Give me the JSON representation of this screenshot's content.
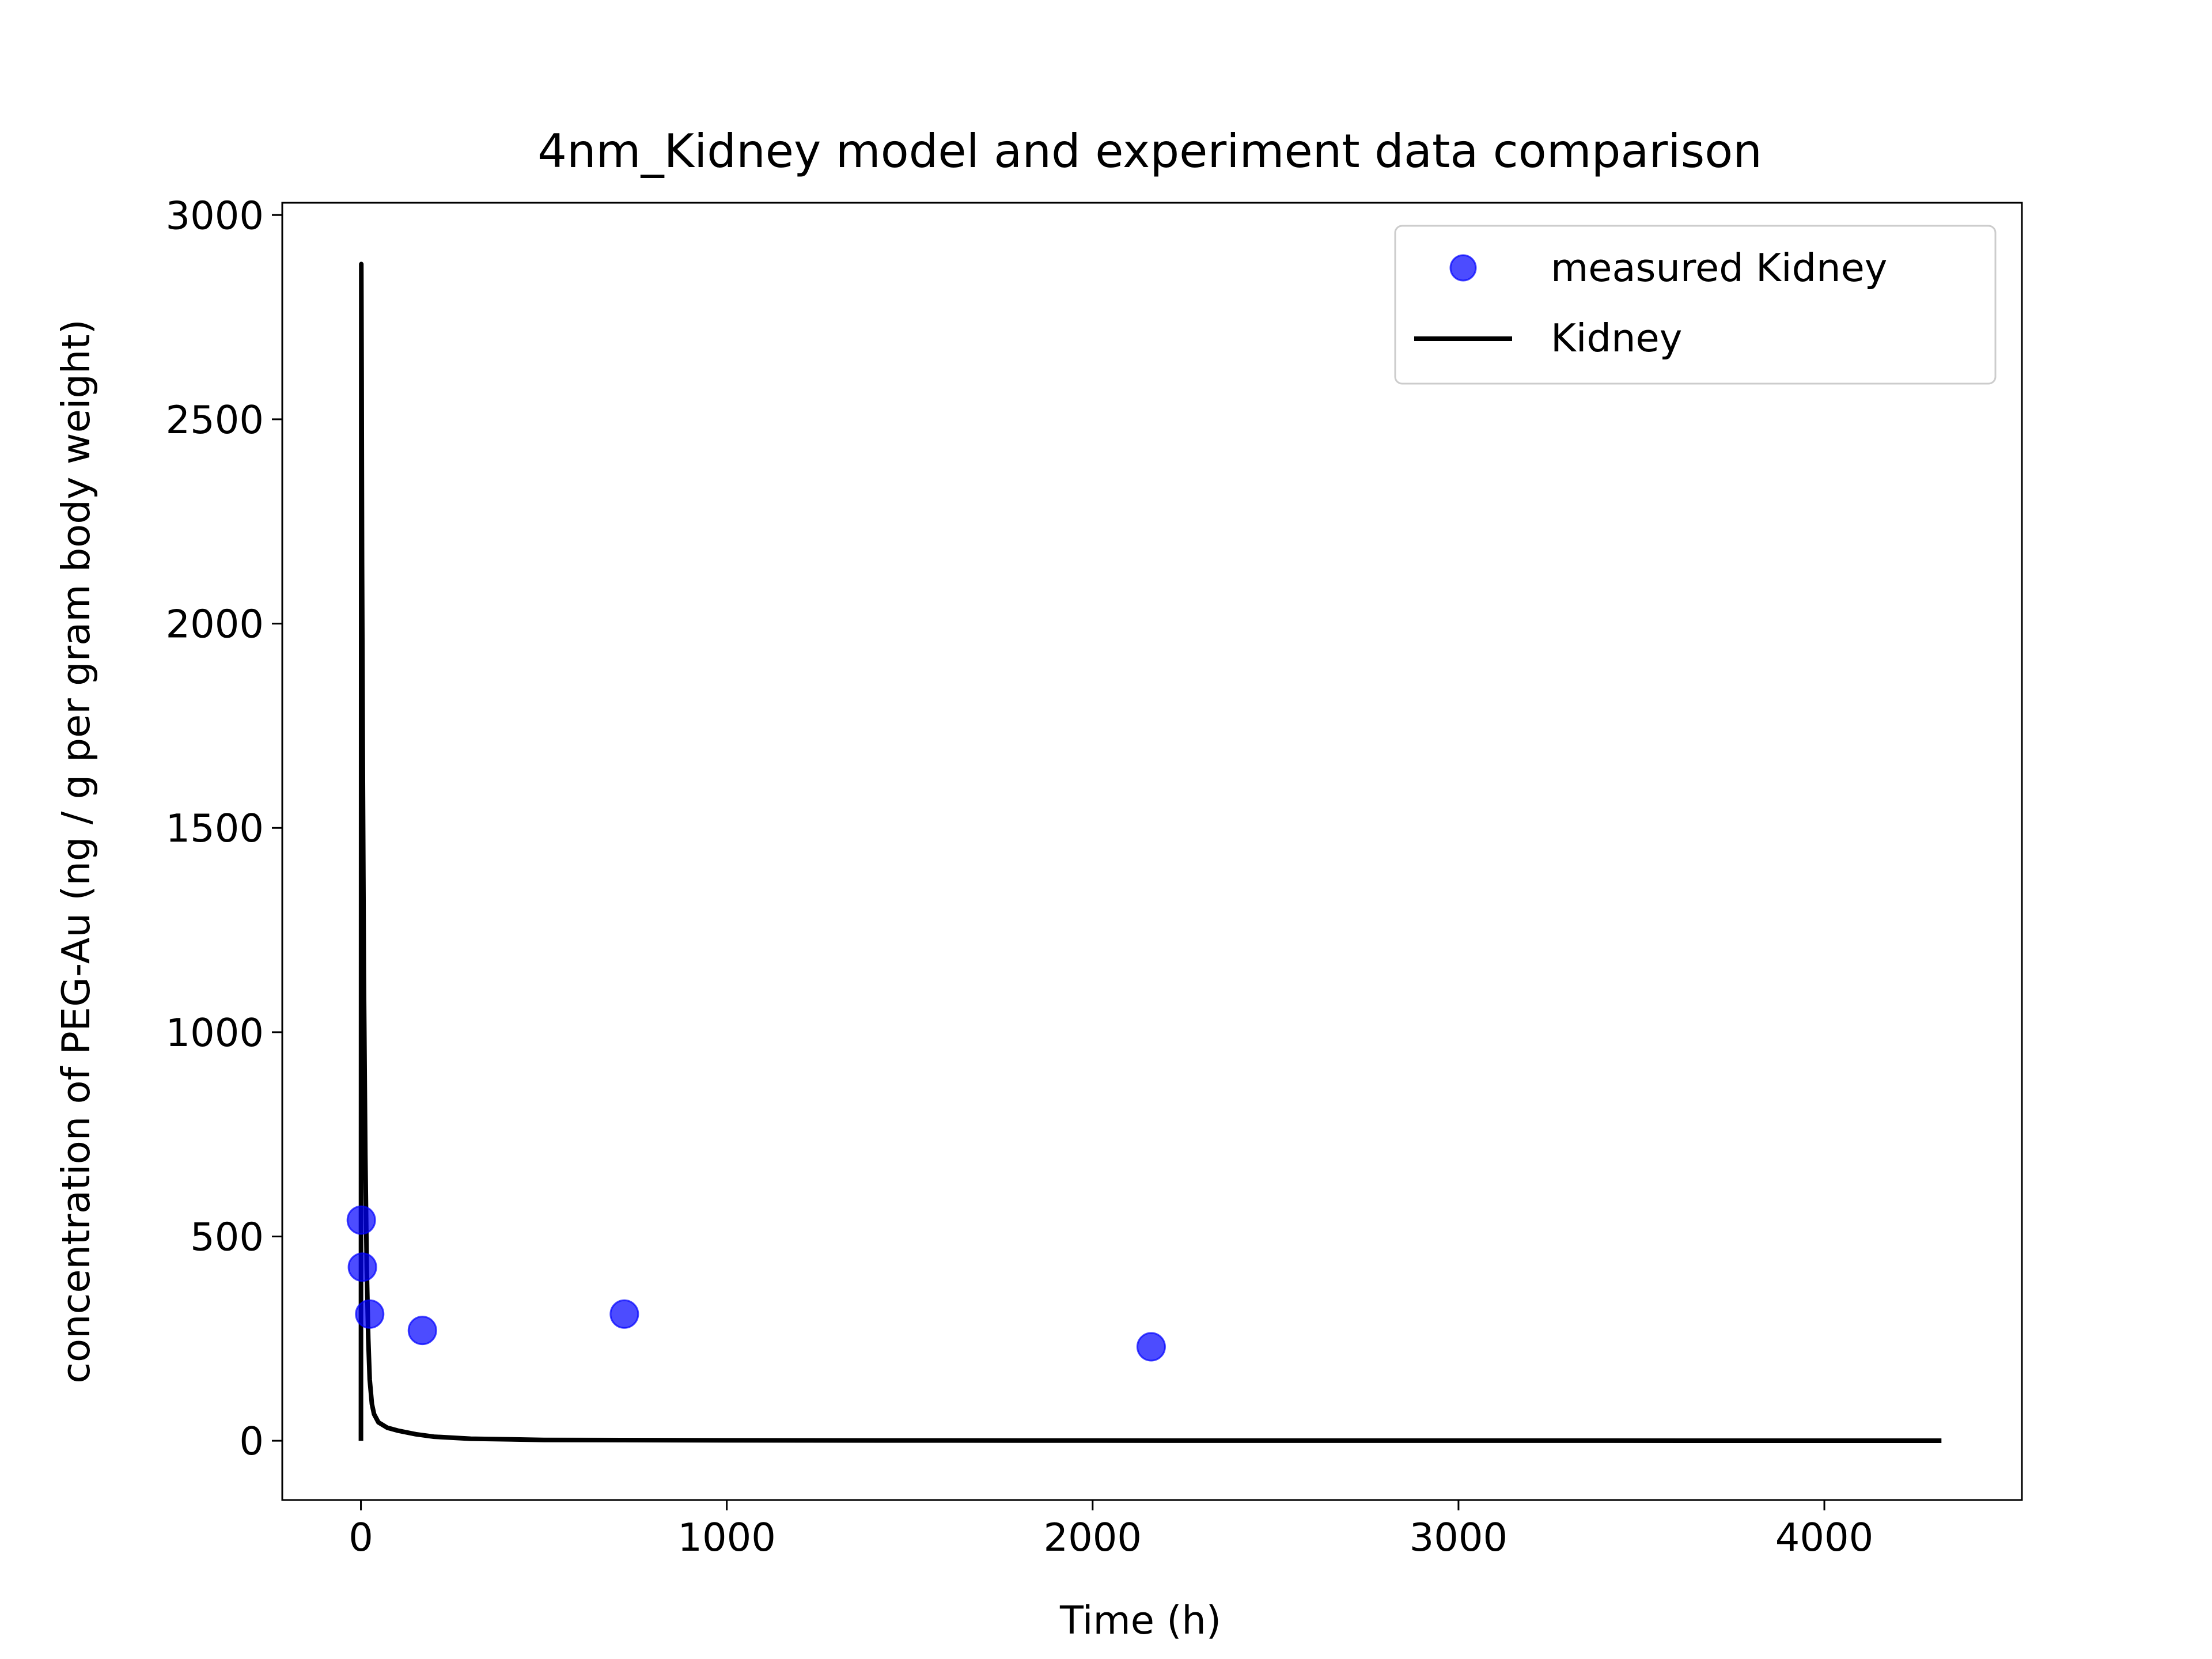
{
  "chart_data": {
    "type": "scatter",
    "title": "4nm_Kidney model and experiment data comparison",
    "xlabel": "Time (h)",
    "ylabel": "concentration of PEG-Au (ng / g per gram body weight)",
    "xlim": [
      -215,
      4540
    ],
    "ylim": [
      -145,
      3030
    ],
    "xticks": [
      0,
      1000,
      2000,
      3000,
      4000
    ],
    "yticks": [
      0,
      500,
      1000,
      1500,
      2000,
      2500,
      3000
    ],
    "xtick_labels": [
      "0",
      "1000",
      "2000",
      "3000",
      "4000"
    ],
    "ytick_labels": [
      "0",
      "500",
      "1000",
      "1500",
      "2000",
      "2500",
      "3000"
    ],
    "grid": false,
    "legend_position": "upper right",
    "series": [
      {
        "name": "measured Kidney",
        "kind": "scatter",
        "color": "#0000ff",
        "x": [
          1,
          4,
          24,
          168,
          720,
          2160
        ],
        "y": [
          540,
          425,
          310,
          270,
          310,
          230
        ]
      },
      {
        "name": "Kidney",
        "kind": "line",
        "color": "#000000",
        "x": [
          0,
          1,
          2,
          3,
          5,
          8,
          12,
          16,
          20,
          24,
          30,
          36,
          48,
          72,
          100,
          150,
          200,
          300,
          500,
          1000,
          2000,
          3000,
          4320
        ],
        "y": [
          0,
          2880,
          2600,
          2150,
          1700,
          1150,
          700,
          420,
          250,
          150,
          90,
          65,
          45,
          32,
          25,
          16,
          10,
          5,
          2,
          1,
          0.5,
          0.3,
          0.2
        ]
      }
    ]
  }
}
